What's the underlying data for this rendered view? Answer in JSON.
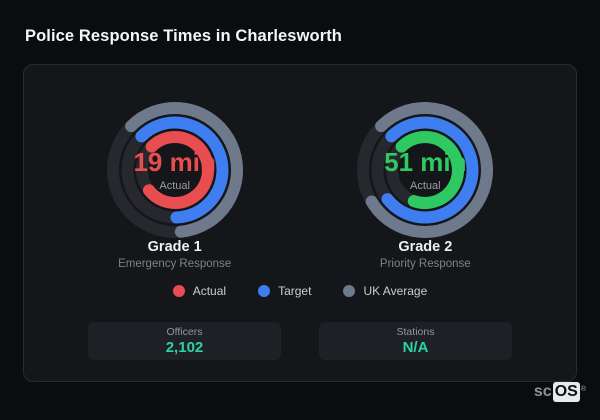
{
  "page": {
    "title": "Police Response Times in Charlesworth"
  },
  "colors": {
    "actual_grade1": "#e84d50",
    "actual_grade2": "#2ec963",
    "target": "#3e7ef0",
    "uk_average": "#6e7a8c",
    "track": "#26282d",
    "stat_value": "#2ad5a3"
  },
  "chart_data": [
    {
      "type": "radial-bar",
      "title": "Grade 1",
      "subtitle": "Emergency Response",
      "center_value": "19 min",
      "center_label": "Actual",
      "value_color": "#e84d50",
      "start_angle": -45,
      "rings": [
        {
          "name": "UK Average",
          "color": "#6e7a8c",
          "percent": 61
        },
        {
          "name": "Target",
          "color": "#3e7ef0",
          "percent": 62
        },
        {
          "name": "Actual",
          "color": "#e84d50",
          "percent": 77
        }
      ]
    },
    {
      "type": "radial-bar",
      "title": "Grade 2",
      "subtitle": "Priority Response",
      "center_value": "51 min",
      "center_label": "Actual",
      "value_color": "#2ec963",
      "start_angle": -45,
      "rings": [
        {
          "name": "UK Average",
          "color": "#6e7a8c",
          "percent": 79
        },
        {
          "name": "Target",
          "color": "#3e7ef0",
          "percent": 77
        },
        {
          "name": "Actual",
          "color": "#2ec963",
          "percent": 68
        }
      ]
    }
  ],
  "legend": {
    "items": [
      {
        "label": "Actual",
        "color": "#e84d50"
      },
      {
        "label": "Target",
        "color": "#3e7ef0"
      },
      {
        "label": "UK Average",
        "color": "#6e7a8c"
      }
    ]
  },
  "stats": {
    "items": [
      {
        "label": "Officers",
        "value": "2,102"
      },
      {
        "label": "Stations",
        "value": "N/A"
      }
    ]
  },
  "logo": {
    "prefix": "sc",
    "suffix": "OS",
    "registered": "®"
  }
}
